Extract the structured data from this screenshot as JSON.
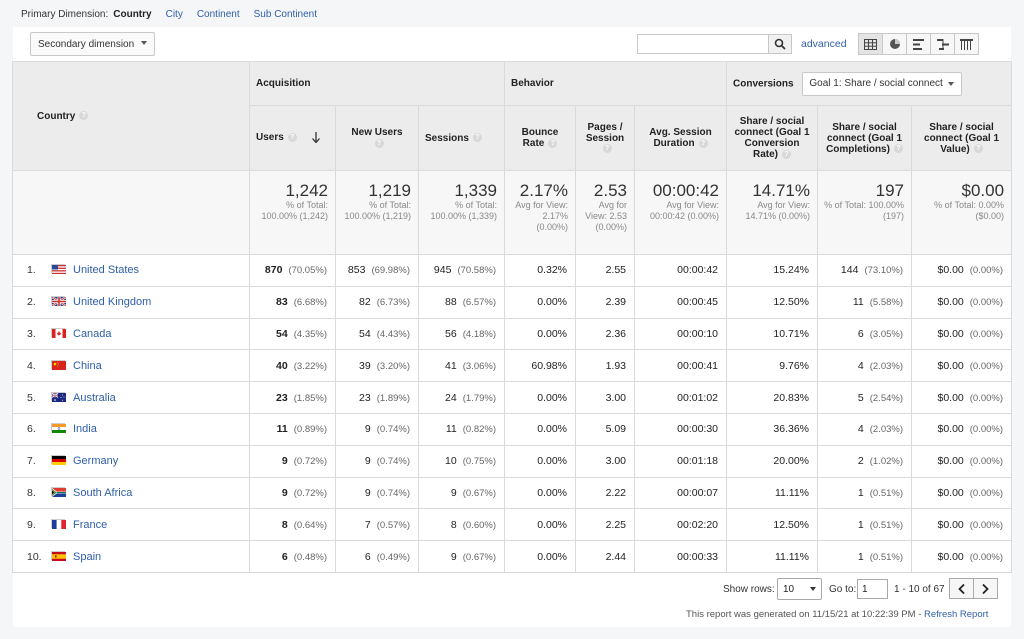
{
  "primary_dimension": {
    "label": "Primary Dimension:",
    "active": "Country",
    "options": [
      "City",
      "Continent",
      "Sub Continent"
    ]
  },
  "toolbar": {
    "secondary_dimension": "Secondary dimension",
    "search_value": "",
    "advanced_label": "advanced"
  },
  "headers": {
    "country": "Country",
    "acquisition": "Acquisition",
    "behavior": "Behavior",
    "conversions": "Conversions",
    "goal_select": "Goal 1: Share / social connect",
    "users": "Users",
    "new_users": "New Users",
    "sessions": "Sessions",
    "bounce_rate": "Bounce Rate",
    "pages_session": "Pages / Session",
    "avg_session_duration": "Avg. Session Duration",
    "conv_rate": "Share / social connect (Goal 1 Conversion Rate)",
    "completions": "Share / social connect (Goal 1 Completions)",
    "goal_value": "Share / social connect (Goal 1 Value)"
  },
  "totals": {
    "users": {
      "value": "1,242",
      "sub": "% of Total: 100.00% (1,242)"
    },
    "new_users": {
      "value": "1,219",
      "sub": "% of Total: 100.00% (1,219)"
    },
    "sessions": {
      "value": "1,339",
      "sub": "% of Total: 100.00% (1,339)"
    },
    "bounce_rate": {
      "value": "2.17%",
      "sub": "Avg for View: 2.17% (0.00%)"
    },
    "pages_session": {
      "value": "2.53",
      "sub": "Avg for View: 2.53 (0.00%)"
    },
    "avg_duration": {
      "value": "00:00:42",
      "sub": "Avg for View: 00:00:42 (0.00%)"
    },
    "conv_rate": {
      "value": "14.71%",
      "sub": "Avg for View: 14.71% (0.00%)"
    },
    "completions": {
      "value": "197",
      "sub": "% of Total: 100.00% (197)"
    },
    "goal_value": {
      "value": "$0.00",
      "sub": "% of Total: 0.00% ($0.00)"
    }
  },
  "rows": [
    {
      "index": "1.",
      "country": "United States",
      "users": "870",
      "users_pct": "(70.05%)",
      "new_users": "853",
      "new_users_pct": "(69.98%)",
      "sessions": "945",
      "sessions_pct": "(70.58%)",
      "bounce_rate": "0.32%",
      "pages_session": "2.55",
      "avg_duration": "00:00:42",
      "conv_rate": "15.24%",
      "completions": "144",
      "completions_pct": "(73.10%)",
      "value": "$0.00",
      "value_pct": "(0.00%)"
    },
    {
      "index": "2.",
      "country": "United Kingdom",
      "users": "83",
      "users_pct": "(6.68%)",
      "new_users": "82",
      "new_users_pct": "(6.73%)",
      "sessions": "88",
      "sessions_pct": "(6.57%)",
      "bounce_rate": "0.00%",
      "pages_session": "2.39",
      "avg_duration": "00:00:45",
      "conv_rate": "12.50%",
      "completions": "11",
      "completions_pct": "(5.58%)",
      "value": "$0.00",
      "value_pct": "(0.00%)"
    },
    {
      "index": "3.",
      "country": "Canada",
      "users": "54",
      "users_pct": "(4.35%)",
      "new_users": "54",
      "new_users_pct": "(4.43%)",
      "sessions": "56",
      "sessions_pct": "(4.18%)",
      "bounce_rate": "0.00%",
      "pages_session": "2.36",
      "avg_duration": "00:00:10",
      "conv_rate": "10.71%",
      "completions": "6",
      "completions_pct": "(3.05%)",
      "value": "$0.00",
      "value_pct": "(0.00%)"
    },
    {
      "index": "4.",
      "country": "China",
      "users": "40",
      "users_pct": "(3.22%)",
      "new_users": "39",
      "new_users_pct": "(3.20%)",
      "sessions": "41",
      "sessions_pct": "(3.06%)",
      "bounce_rate": "60.98%",
      "pages_session": "1.93",
      "avg_duration": "00:00:41",
      "conv_rate": "9.76%",
      "completions": "4",
      "completions_pct": "(2.03%)",
      "value": "$0.00",
      "value_pct": "(0.00%)"
    },
    {
      "index": "5.",
      "country": "Australia",
      "users": "23",
      "users_pct": "(1.85%)",
      "new_users": "23",
      "new_users_pct": "(1.89%)",
      "sessions": "24",
      "sessions_pct": "(1.79%)",
      "bounce_rate": "0.00%",
      "pages_session": "3.00",
      "avg_duration": "00:01:02",
      "conv_rate": "20.83%",
      "completions": "5",
      "completions_pct": "(2.54%)",
      "value": "$0.00",
      "value_pct": "(0.00%)"
    },
    {
      "index": "6.",
      "country": "India",
      "users": "11",
      "users_pct": "(0.89%)",
      "new_users": "9",
      "new_users_pct": "(0.74%)",
      "sessions": "11",
      "sessions_pct": "(0.82%)",
      "bounce_rate": "0.00%",
      "pages_session": "5.09",
      "avg_duration": "00:00:30",
      "conv_rate": "36.36%",
      "completions": "4",
      "completions_pct": "(2.03%)",
      "value": "$0.00",
      "value_pct": "(0.00%)"
    },
    {
      "index": "7.",
      "country": "Germany",
      "users": "9",
      "users_pct": "(0.72%)",
      "new_users": "9",
      "new_users_pct": "(0.74%)",
      "sessions": "10",
      "sessions_pct": "(0.75%)",
      "bounce_rate": "0.00%",
      "pages_session": "3.00",
      "avg_duration": "00:01:18",
      "conv_rate": "20.00%",
      "completions": "2",
      "completions_pct": "(1.02%)",
      "value": "$0.00",
      "value_pct": "(0.00%)"
    },
    {
      "index": "8.",
      "country": "South Africa",
      "users": "9",
      "users_pct": "(0.72%)",
      "new_users": "9",
      "new_users_pct": "(0.74%)",
      "sessions": "9",
      "sessions_pct": "(0.67%)",
      "bounce_rate": "0.00%",
      "pages_session": "2.22",
      "avg_duration": "00:00:07",
      "conv_rate": "11.11%",
      "completions": "1",
      "completions_pct": "(0.51%)",
      "value": "$0.00",
      "value_pct": "(0.00%)"
    },
    {
      "index": "9.",
      "country": "France",
      "users": "8",
      "users_pct": "(0.64%)",
      "new_users": "7",
      "new_users_pct": "(0.57%)",
      "sessions": "8",
      "sessions_pct": "(0.60%)",
      "bounce_rate": "0.00%",
      "pages_session": "2.25",
      "avg_duration": "00:02:20",
      "conv_rate": "12.50%",
      "completions": "1",
      "completions_pct": "(0.51%)",
      "value": "$0.00",
      "value_pct": "(0.00%)"
    },
    {
      "index": "10.",
      "country": "Spain",
      "users": "6",
      "users_pct": "(0.48%)",
      "new_users": "6",
      "new_users_pct": "(0.49%)",
      "sessions": "9",
      "sessions_pct": "(0.67%)",
      "bounce_rate": "0.00%",
      "pages_session": "2.44",
      "avg_duration": "00:00:33",
      "conv_rate": "11.11%",
      "completions": "1",
      "completions_pct": "(0.51%)",
      "value": "$0.00",
      "value_pct": "(0.00%)"
    }
  ],
  "footer": {
    "show_rows_label": "Show rows:",
    "show_rows_value": "10",
    "goto_label": "Go to:",
    "goto_value": "1",
    "range": "1 - 10 of 67",
    "generated_text": "This report was generated on 11/15/21 at 10:22:39 PM -",
    "refresh_label": "Refresh Report"
  },
  "colors": {
    "link": "#2f5ea8",
    "header_bg": "#ececec",
    "totals_bg": "#f7f7f7"
  }
}
